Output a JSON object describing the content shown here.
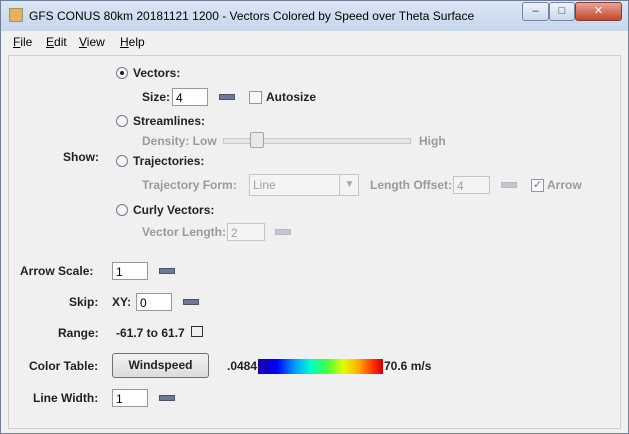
{
  "window": {
    "title": "GFS CONUS 80km 20181121 1200 - Vectors Colored by Speed over Theta Surface",
    "menu": [
      "File",
      "Edit",
      "View",
      "Help"
    ]
  },
  "show": {
    "label": "Show:",
    "vectors": {
      "label": "Vectors:",
      "size_label": "Size:",
      "size": 4,
      "autosize": "Autosize"
    },
    "streamlines": {
      "label": "Streamlines:",
      "density_label": "Density: Low",
      "high": "High"
    },
    "trajectories": {
      "label": "Trajectories:",
      "form_label": "Trajectory Form:",
      "form": "Line",
      "offset_label": "Length Offset:",
      "offset": 4,
      "arrow": "Arrow"
    },
    "curly_vectors": {
      "label": "Curly Vectors:",
      "length_label": "Vector Length:",
      "length": 2
    }
  },
  "arrow_scale": {
    "label": "Arrow Scale:",
    "value": 1
  },
  "skip": {
    "label": "Skip:",
    "xy_label": "XY:",
    "value": 0
  },
  "range": {
    "label": "Range:",
    "value": "-61.7 to 61.7"
  },
  "color_table": {
    "label": "Color Table:",
    "button": "Windspeed",
    "min": ".0484",
    "max": "70.6 m/s"
  },
  "line_width": {
    "label": "Line Width:",
    "value": 1
  }
}
